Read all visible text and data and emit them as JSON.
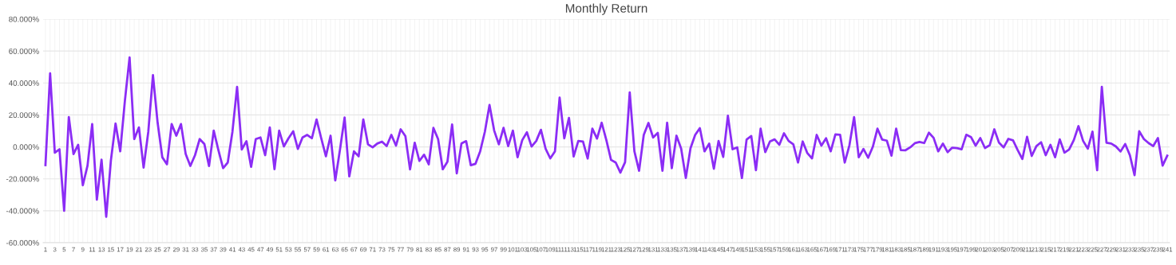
{
  "chart_data": {
    "type": "line",
    "title": "Monthly Return",
    "categories": [
      "1",
      null,
      "3",
      null,
      "5",
      null,
      "7",
      null,
      "9",
      null,
      "11",
      null,
      "13",
      null,
      "15",
      null,
      "17",
      null,
      "19",
      null,
      "21",
      null,
      "23",
      null,
      "25",
      null,
      "27",
      null,
      "29",
      null,
      "31",
      null,
      "33",
      null,
      "35",
      null,
      "37",
      null,
      "39",
      null,
      "41",
      null,
      "43",
      null,
      "45",
      null,
      "47",
      null,
      "49",
      null,
      "51",
      null,
      "53",
      null,
      "55",
      null,
      "57",
      null,
      "59",
      null,
      "61",
      null,
      "63",
      null,
      "65",
      null,
      "67",
      null,
      "69",
      null,
      "71",
      null,
      "73",
      null,
      "75",
      null,
      "77",
      null,
      "79",
      null,
      "81",
      null,
      "83",
      null,
      "85",
      null,
      "87",
      null,
      "89",
      null,
      "91",
      null,
      "93",
      null,
      "95",
      null,
      "97",
      null,
      "99",
      null,
      "101",
      null,
      "103",
      null,
      "105",
      null,
      "107",
      null,
      "109",
      null,
      "111",
      null,
      "113",
      null,
      "115",
      null,
      "117",
      null,
      "119",
      null,
      "121",
      null,
      "123",
      null,
      "125",
      null,
      "127",
      null,
      "129",
      null,
      "131",
      null,
      "133",
      null,
      "135",
      null,
      "137",
      null,
      "139",
      null,
      "141",
      null,
      "143",
      null,
      "145",
      null,
      "147",
      null,
      "149",
      null,
      "151",
      null,
      "153",
      null,
      "155",
      null,
      "157",
      null,
      "159",
      null,
      "161",
      null,
      "163",
      null,
      "165",
      null,
      "167",
      null,
      "169",
      null,
      "171",
      null,
      "173",
      null,
      "175",
      null,
      "177",
      null,
      "179",
      null,
      "181",
      null,
      "183",
      null,
      "185",
      null,
      "187",
      null,
      "189",
      null,
      "191",
      null,
      "193",
      null,
      "195",
      null,
      "197",
      null,
      "199",
      null,
      "201",
      null,
      "203",
      null,
      "205",
      null,
      "207",
      null,
      "209",
      null,
      "211",
      null,
      "213",
      null,
      "215",
      null,
      "217",
      null,
      "219",
      null,
      "221",
      null,
      "223",
      null,
      "225",
      null,
      "227",
      null,
      "229",
      null,
      "231",
      null,
      "233",
      null,
      "235",
      null,
      "237",
      null,
      "239",
      null,
      "241"
    ],
    "series": [
      {
        "color": "#8b2cf5",
        "values": [
          -11.4,
          46,
          -3.6,
          -1.5,
          -40,
          18.7,
          -4.5,
          1.3,
          -24,
          -11.7,
          14.3,
          -33,
          -8,
          -43.7,
          -8.5,
          14.6,
          -2.8,
          29,
          56,
          4.9,
          12.2,
          -13,
          9.4,
          44.9,
          15.1,
          -6.5,
          -10.9,
          14.3,
          7,
          14.3,
          -4.4,
          -11.9,
          -5.2,
          4.9,
          1.8,
          -12,
          10.2,
          -2,
          -13.3,
          -9.8,
          9.4,
          37.6,
          -1.6,
          3.6,
          -12.5,
          4.9,
          5.9,
          -5.2,
          12.2,
          -14,
          10.2,
          0.3,
          5.4,
          9.8,
          -1.3,
          5.9,
          7.5,
          5.4,
          17.2,
          5.4,
          -5.9,
          7,
          -21,
          -2,
          18.4,
          -18.5,
          -2.8,
          -5.9,
          17.2,
          1.6,
          -0.3,
          2.1,
          3.3,
          0.5,
          7.5,
          0.8,
          11,
          6.8,
          -14.1,
          2.6,
          -8.8,
          -4.9,
          -10.9,
          11.9,
          4.9,
          -14,
          -9.3,
          14,
          -16.6,
          2.1,
          3.6,
          -11.5,
          -10.6,
          -2.8,
          9.4,
          26.2,
          10.2,
          1.6,
          11.9,
          0.5,
          10.2,
          -6.5,
          4.2,
          9.1,
          0.2,
          3.7,
          10.7,
          -1.1,
          -7.2,
          -2.8,
          30.9,
          5.4,
          18.2,
          -6,
          3.7,
          3.3,
          -7.3,
          11.4,
          5.2,
          15.1,
          4.2,
          -8.1,
          -9.8,
          -16.1,
          -9.6,
          34.1,
          -2.8,
          -15,
          7.5,
          15,
          5.9,
          8.8,
          -15,
          15.1,
          -13.3,
          7,
          -1.1,
          -19.4,
          -0.8,
          7.5,
          11.7,
          -2.8,
          2,
          -13.7,
          3.7,
          -6.3,
          19.5,
          -1.5,
          -0.3,
          -19.5,
          4.6,
          6.8,
          -14.6,
          11.4,
          -3.3,
          3.4,
          4.7,
          1.3,
          8.5,
          3.7,
          1.6,
          -9.8,
          3.4,
          -3.9,
          -7.2,
          7.5,
          0.8,
          5.4,
          -2.8,
          7.8,
          7.6,
          -9.8,
          1,
          18.7,
          -6.5,
          -1.3,
          -6.8,
          0,
          11.4,
          4.6,
          3.9,
          -5.5,
          11.4,
          -2,
          -2.1,
          -0.3,
          2.3,
          3.1,
          2.4,
          8.9,
          5.7,
          -2.8,
          2.1,
          -3.3,
          -0.5,
          -0.8,
          -1.5,
          7.6,
          6.2,
          0.8,
          5.5,
          -0.7,
          1,
          11,
          2.6,
          -0.3,
          5,
          4.1,
          -2,
          -7.6,
          6.3,
          -5.7,
          0.5,
          2.9,
          -5.2,
          1.3,
          -6.5,
          4.7,
          -3.6,
          -1.6,
          4.2,
          13,
          3.7,
          -1.1,
          9.6,
          -14.6,
          37.6,
          2.6,
          2.1,
          0.3,
          -2.9,
          1.8,
          -5.2,
          -17.7,
          9.8,
          4.9,
          2.4,
          0.5,
          5.5,
          -11.7,
          -5.5
        ]
      }
    ],
    "ylim": [
      -60,
      80
    ],
    "yticks": [
      {
        "value": -60,
        "label": "-60.000%"
      },
      {
        "value": -40,
        "label": "-40.000%"
      },
      {
        "value": -20,
        "label": "-20.000%"
      },
      {
        "value": 0,
        "label": "0.000%"
      },
      {
        "value": 20,
        "label": "20.000%"
      },
      {
        "value": 40,
        "label": "40.000%"
      },
      {
        "value": 60,
        "label": "60.000%"
      },
      {
        "value": 80,
        "label": "80.000%"
      }
    ],
    "grid": true,
    "marker": "none",
    "line_style": "solid"
  }
}
